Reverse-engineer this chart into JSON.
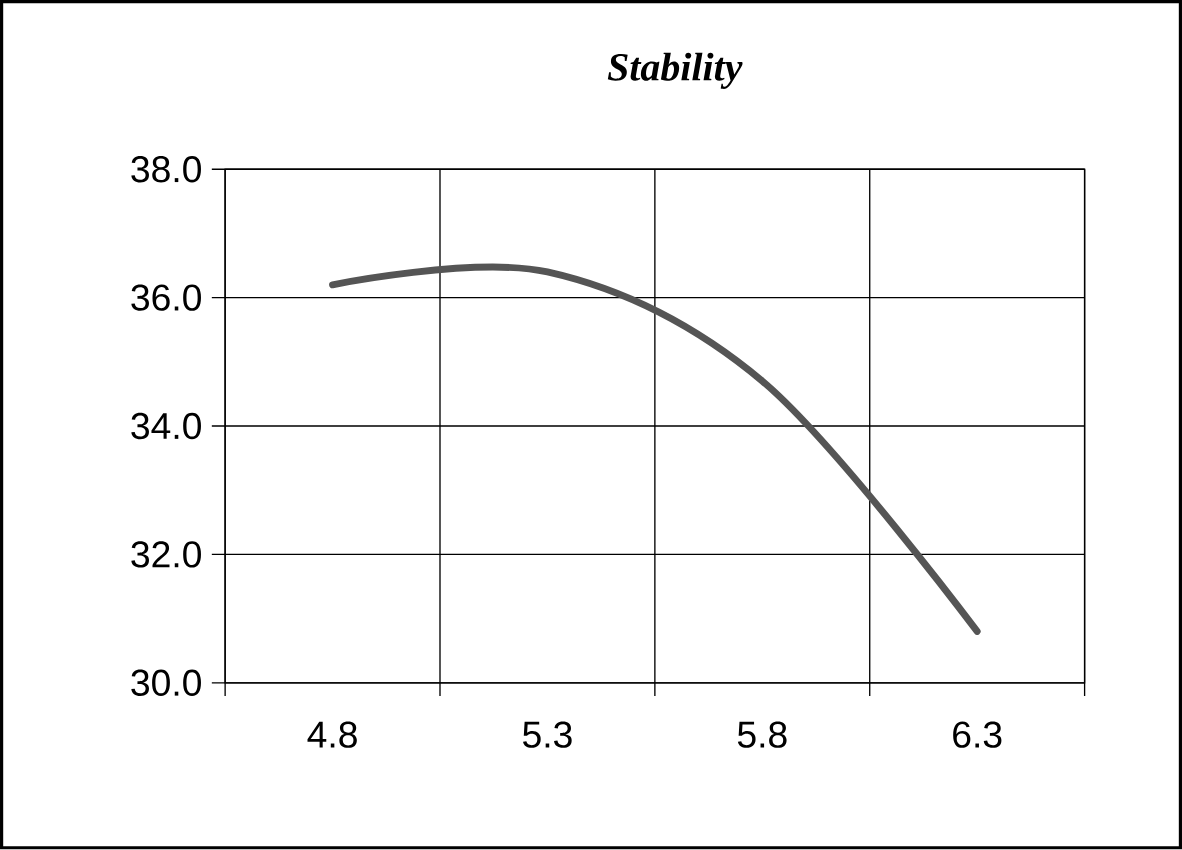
{
  "chart_data": {
    "type": "line",
    "title": "*Stability*",
    "categories": [
      "4.8",
      "5.3",
      "5.8",
      "6.3"
    ],
    "series": [
      {
        "color": "#555555",
        "values": [
          36.2,
          36.4,
          34.7,
          30.8
        ]
      }
    ],
    "ylim": [
      30,
      38
    ],
    "yticks": [
      {
        "value": 30,
        "label": "30.0"
      },
      {
        "value": 32,
        "label": "32.0"
      },
      {
        "value": 34,
        "label": "34.0"
      },
      {
        "value": 36,
        "label": "36.0"
      },
      {
        "value": 38,
        "label": "38.0"
      }
    ],
    "grid": true,
    "marker": "none",
    "line_style": "solid"
  }
}
